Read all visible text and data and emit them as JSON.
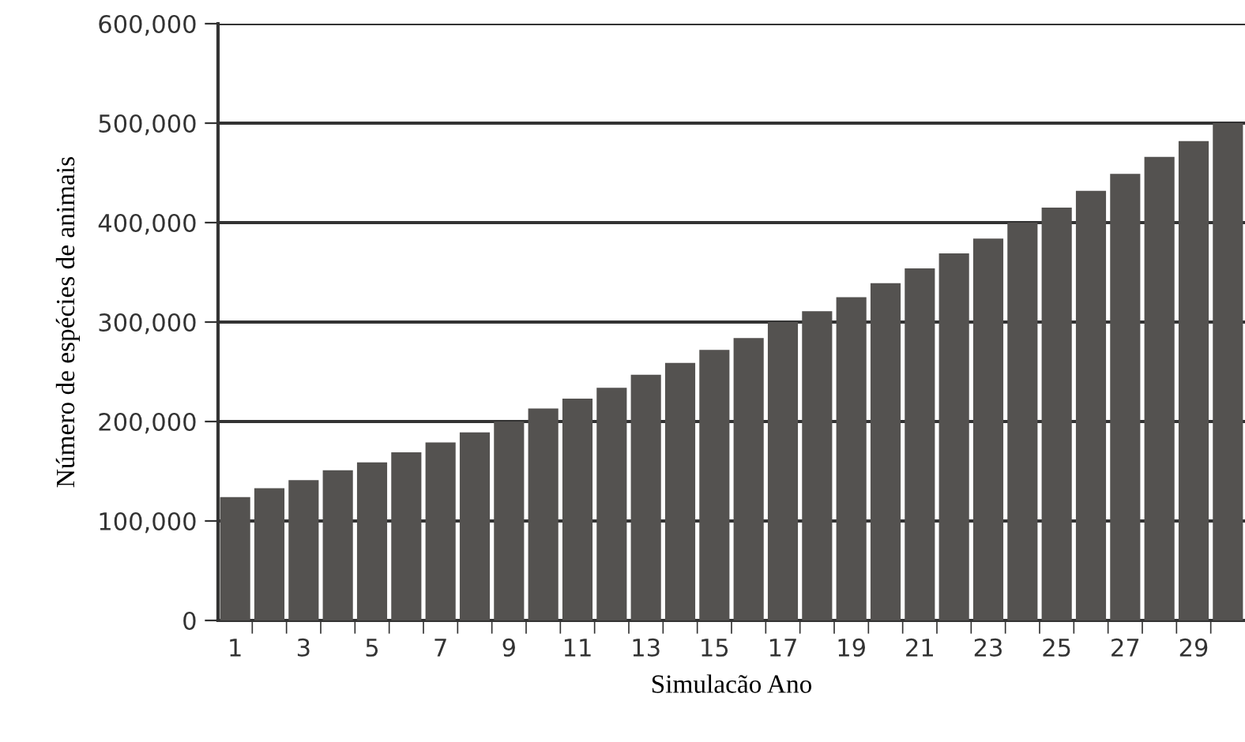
{
  "chart_data": {
    "type": "bar",
    "xlabel": "Simulacão Ano",
    "ylabel": "Número de espécies de animais",
    "categories": [
      "1",
      null,
      "3",
      null,
      "5",
      null,
      "7",
      null,
      "9",
      null,
      "11",
      null,
      "13",
      null,
      "15",
      null,
      "17",
      null,
      "19",
      null,
      "21",
      null,
      "23",
      null,
      "25",
      null,
      "27",
      null,
      "29",
      null
    ],
    "values": [
      124000,
      133000,
      141000,
      151000,
      159000,
      169000,
      179000,
      189000,
      200000,
      213000,
      223000,
      234000,
      247000,
      259000,
      272000,
      284000,
      300000,
      311000,
      325000,
      339000,
      354000,
      369000,
      384000,
      400000,
      415000,
      432000,
      449000,
      466000,
      482000,
      500000
    ],
    "color": "#545250",
    "ylim": [
      0,
      600000
    ],
    "yticks": [
      {
        "value": 0,
        "label": "0"
      },
      {
        "value": 100000,
        "label": "100,000"
      },
      {
        "value": 200000,
        "label": "200,000"
      },
      {
        "value": 300000,
        "label": "300,000"
      },
      {
        "value": 400000,
        "label": "400,000"
      },
      {
        "value": 500000,
        "label": "500,000"
      },
      {
        "value": 600000,
        "label": "600,000"
      }
    ],
    "grid": "y"
  }
}
